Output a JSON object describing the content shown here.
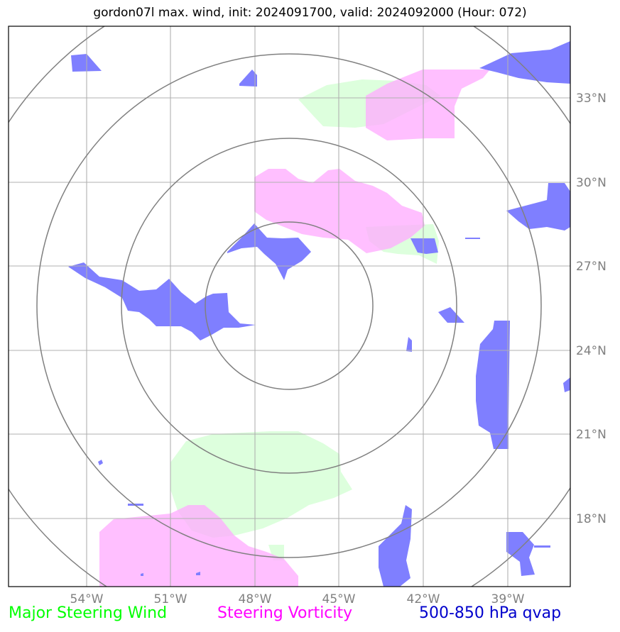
{
  "title": "gordon07l max. wind, init: 2024091700, valid: 2024092000 (Hour: 072)",
  "lon_ticks": [
    "54°W",
    "51°W",
    "48°W",
    "45°W",
    "42°W",
    "39°W"
  ],
  "lat_ticks": [
    "33°N",
    "30°N",
    "27°N",
    "24°N",
    "21°N",
    "18°N"
  ],
  "legend": {
    "major_steering_wind": "Major Steering Wind",
    "steering_vorticity": "Steering Vorticity",
    "qvap": "500-850 hPa qvap"
  },
  "colors": {
    "major_steering_wind": "#ddffdd",
    "steering_vorticity": "#ffbbff",
    "qvap": "#7f7fff",
    "grid": "#b0b0b0",
    "range_rings": "#808080"
  },
  "map_extent": {
    "lon": [
      -57,
      -37
    ],
    "lat": [
      15,
      35
    ]
  },
  "range_rings_center": {
    "lon": "47°W",
    "lat": "25.5°N"
  }
}
